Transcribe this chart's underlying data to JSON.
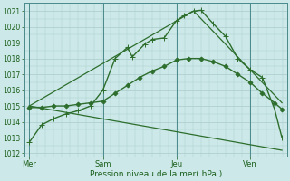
{
  "background_color": "#cce8e8",
  "grid_color": "#aacccc",
  "line_color": "#2d6e2d",
  "xlabel": "Pression niveau de la mer( hPa )",
  "ylim": [
    1011.8,
    1021.5
  ],
  "yticks": [
    1012,
    1013,
    1014,
    1015,
    1016,
    1017,
    1018,
    1019,
    1020,
    1021
  ],
  "xlim": [
    -0.2,
    10.5
  ],
  "day_labels": [
    "Mer",
    "Sam",
    "Jeu",
    "Ven"
  ],
  "day_positions": [
    0,
    3,
    6,
    9
  ],
  "series": [
    {
      "x": [
        0,
        0.5,
        1.0,
        1.5,
        2.0,
        2.5,
        3.0,
        3.5,
        4.0,
        4.2,
        4.7,
        5.0,
        5.5,
        6.0,
        6.3,
        6.7,
        7.0,
        7.5,
        8.0,
        8.5,
        9.0,
        9.5,
        10.0,
        10.3
      ],
      "y": [
        1012.7,
        1013.8,
        1014.2,
        1014.5,
        1014.7,
        1015.0,
        1016.0,
        1018.0,
        1018.7,
        1018.1,
        1018.9,
        1019.2,
        1019.3,
        1020.4,
        1020.7,
        1021.0,
        1021.05,
        1020.2,
        1019.4,
        1018.0,
        1017.3,
        1016.8,
        1014.8,
        1013.0
      ],
      "marker": "+",
      "markersize": 4,
      "lw": 1.0
    },
    {
      "x": [
        0,
        0.5,
        1.0,
        1.5,
        2.0,
        2.5,
        3.0,
        3.5,
        4.0,
        4.5,
        5.0,
        5.5,
        6.0,
        6.5,
        7.0,
        7.5,
        8.0,
        8.5,
        9.0,
        9.5,
        10.0,
        10.3
      ],
      "y": [
        1014.9,
        1014.9,
        1015.0,
        1015.0,
        1015.1,
        1015.2,
        1015.3,
        1015.8,
        1016.3,
        1016.8,
        1017.2,
        1017.5,
        1017.9,
        1018.0,
        1018.0,
        1017.8,
        1017.5,
        1017.0,
        1016.5,
        1015.8,
        1015.2,
        1014.8
      ],
      "marker": "D",
      "markersize": 2.5,
      "lw": 1.0
    },
    {
      "x": [
        0,
        6.7,
        10.3
      ],
      "y": [
        1015.0,
        1021.0,
        1015.2
      ],
      "marker": "",
      "markersize": 0,
      "lw": 0.9
    },
    {
      "x": [
        0,
        10.3
      ],
      "y": [
        1015.0,
        1012.2
      ],
      "marker": "",
      "markersize": 0,
      "lw": 0.9
    }
  ]
}
